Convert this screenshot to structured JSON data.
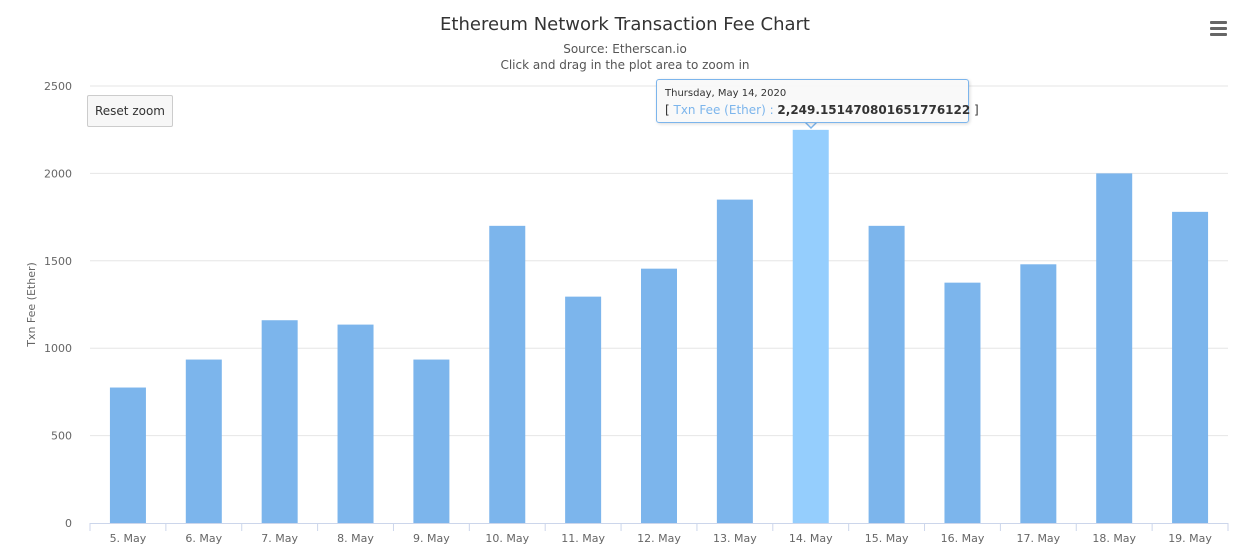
{
  "header": {
    "title": "Ethereum Network Transaction Fee Chart",
    "source": "Source: Etherscan.io",
    "hint": "Click and drag in the plot area to zoom in"
  },
  "controls": {
    "reset_zoom_label": "Reset zoom",
    "menu_icon": "hamburger-menu-icon"
  },
  "tooltip": {
    "date": "Thursday, May 14, 2020",
    "open_bracket": "[ ",
    "series_label": "Txn Fee (Ether) : ",
    "value": "2,249.151470801651776122",
    "close_bracket": " ]"
  },
  "colors": {
    "bar": "#7cb5ec",
    "bar_hover": "#95cefd",
    "grid": "#e6e6e6",
    "axis": "#ccd6eb"
  },
  "chart_data": {
    "type": "bar",
    "title": "Ethereum Network Transaction Fee Chart",
    "subtitle": "Source: Etherscan.io",
    "xlabel": "",
    "ylabel": "Txn Fee (Ether)",
    "ylim": [
      0,
      2500
    ],
    "yticks": [
      0,
      500,
      1000,
      1500,
      2000,
      2500
    ],
    "grid": true,
    "legend": "none",
    "categories": [
      "5. May",
      "6. May",
      "7. May",
      "8. May",
      "9. May",
      "10. May",
      "11. May",
      "12. May",
      "13. May",
      "14. May",
      "15. May",
      "16. May",
      "17. May",
      "18. May",
      "19. May"
    ],
    "series": [
      {
        "name": "Txn Fee (Ether)",
        "values": [
          775,
          935,
          1160,
          1135,
          935,
          1700,
          1295,
          1455,
          1850,
          2249.15,
          1700,
          1375,
          1480,
          2000,
          1780
        ]
      }
    ],
    "highlighted_index": 9
  }
}
